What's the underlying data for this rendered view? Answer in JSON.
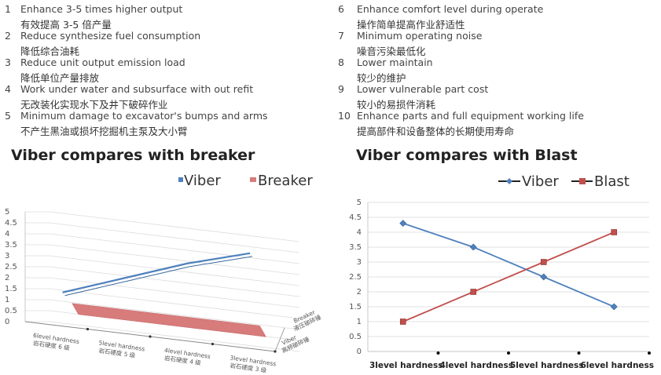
{
  "features_left": [
    {
      "num": "1",
      "en": "Enhance 3-5 times higher output",
      "zh": "有效提高 3-5 倍产量"
    },
    {
      "num": "2",
      "en": "Reduce synthesize fuel consumption",
      "zh": "降低综合油耗"
    },
    {
      "num": "3",
      "en": "Reduce unit output emission load",
      "zh": "降低单位产量排放"
    },
    {
      "num": "4",
      "en": "Work under water and subsurface with out refit",
      "zh": "无改装化实现水下及井下破碎作业"
    },
    {
      "num": "5",
      "en": "Minimum damage to excavator's bumps and arms",
      "zh": "不产生黑油或损坏挖掘机主泵及大小臂"
    }
  ],
  "features_right": [
    {
      "num": "6",
      "en": "Enhance comfort level during operate",
      "zh": "操作简单提高作业舒适性"
    },
    {
      "num": "7",
      "en": "Minimum operating noise",
      "zh": "噪音污染最低化"
    },
    {
      "num": "8",
      "en": "Lower maintain",
      "zh": "较少的维护"
    },
    {
      "num": "9",
      "en": "Lower vulnerable part cost",
      "zh": "较小的易损件消耗"
    },
    {
      "num": "10",
      "en": "Enhance parts and full equipment working life",
      "zh": "提高部件和设备整体的长期使用寿命"
    }
  ],
  "chart_data": [
    {
      "type": "line",
      "title": "Viber compares with breaker",
      "categories": [
        {
          "en": "6level hardness",
          "zh": "岩石硬度 6 级"
        },
        {
          "en": "5level hardness",
          "zh": "岩石硬度 5 级"
        },
        {
          "en": "4level hardness",
          "zh": "岩石硬度 4 级"
        },
        {
          "en": "3level hardness",
          "zh": "岩石硬度 3 级"
        }
      ],
      "series": [
        {
          "name": "Viber",
          "values": [
            1.5,
            2.5,
            3.5,
            4.3
          ],
          "color": "#4f81bd",
          "depth_label": {
            "en": "Viber",
            "zh": "高频破碎锤"
          }
        },
        {
          "name": "Breaker",
          "values": [
            1.0,
            1.0,
            1.0,
            1.0
          ],
          "color": "#d77b7b",
          "depth_label": {
            "en": "Breaker",
            "zh": "液压破碎锤"
          }
        }
      ],
      "yticks": [
        "0",
        "0.5",
        "1",
        "1.5",
        "2",
        "2.5",
        "3",
        "3.5",
        "4",
        "4.5",
        "5"
      ],
      "ylim": [
        0,
        5
      ],
      "legend_position": "top-right",
      "grid": true
    },
    {
      "type": "line",
      "title": "Viber compares with Blast",
      "categories": [
        "3level hardness",
        "4level hardness",
        "5level hardness",
        "6level hardness"
      ],
      "series": [
        {
          "name": "Viber",
          "values": [
            4.3,
            3.5,
            2.5,
            1.5
          ],
          "color": "#4f81bd",
          "marker": "diamond"
        },
        {
          "name": "Blast",
          "values": [
            1.0,
            2.0,
            3.0,
            4.0
          ],
          "color": "#c0504d",
          "marker": "square"
        }
      ],
      "yticks": [
        "0",
        "0.5",
        "1",
        "1.5",
        "2",
        "2.5",
        "3",
        "3.5",
        "4",
        "4.5",
        "5"
      ],
      "ylim": [
        0,
        5
      ],
      "legend_position": "top-right",
      "grid": true
    }
  ]
}
